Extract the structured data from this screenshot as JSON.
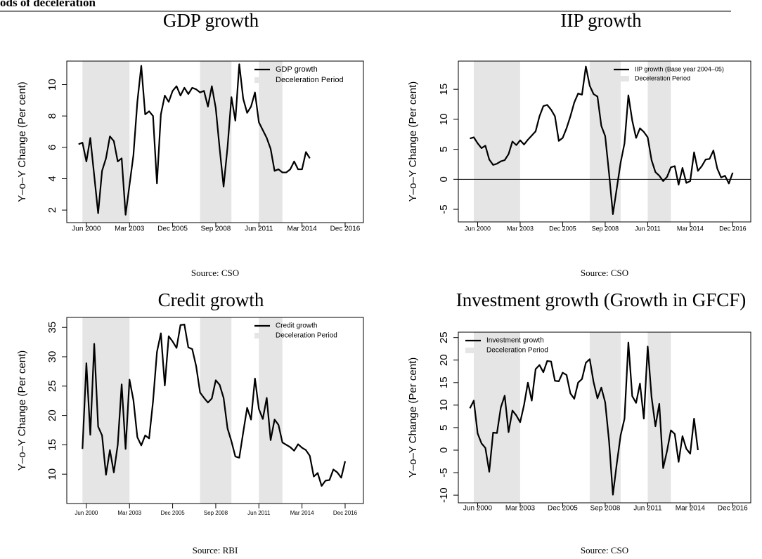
{
  "page_header": "ods of deceleration",
  "chart_data": [
    {
      "type": "line",
      "title": "GDP growth",
      "source": "Source: CSO",
      "ylabel": "Y–o–Y Change (Per cent)",
      "x": [
        "Dec 1999",
        "Mar 2000",
        "Jun 2000",
        "Sep 2000",
        "Dec 2000",
        "Mar 2001",
        "Jun 2001",
        "Sep 2001",
        "Dec 2001",
        "Mar 2002",
        "Jun 2002",
        "Sep 2002",
        "Dec 2002",
        "Mar 2003",
        "Jun 2003",
        "Sep 2003",
        "Dec 2003",
        "Mar 2004",
        "Jun 2004",
        "Sep 2004",
        "Dec 2004",
        "Mar 2005",
        "Jun 2005",
        "Sep 2005",
        "Dec 2005",
        "Mar 2006",
        "Jun 2006",
        "Sep 2006",
        "Dec 2006",
        "Mar 2007",
        "Jun 2007",
        "Sep 2007",
        "Dec 2007",
        "Mar 2008",
        "Jun 2008",
        "Sep 2008",
        "Dec 2008",
        "Mar 2009",
        "Jun 2009",
        "Sep 2009",
        "Dec 2009",
        "Mar 2010",
        "Jun 2010",
        "Sep 2010",
        "Dec 2010",
        "Mar 2011",
        "Jun 2011",
        "Sep 2011",
        "Dec 2011",
        "Mar 2012",
        "Jun 2012",
        "Sep 2012",
        "Dec 2012",
        "Mar 2013",
        "Jun 2013",
        "Sep 2013",
        "Dec 2013",
        "Mar 2014",
        "Jun 2014",
        "Sep 2014"
      ],
      "series": [
        {
          "name": "GDP growth",
          "color": "#000000",
          "values": [
            6.2,
            6.3,
            5.1,
            6.6,
            4.2,
            1.8,
            4.5,
            5.3,
            6.7,
            6.4,
            5.1,
            5.3,
            1.7,
            3.6,
            5.5,
            8.9,
            11.2,
            8.1,
            8.3,
            8.0,
            3.7,
            8.1,
            9.3,
            8.9,
            9.6,
            9.9,
            9.3,
            9.8,
            9.4,
            9.8,
            9.7,
            9.5,
            9.6,
            8.6,
            9.9,
            8.5,
            5.9,
            3.5,
            6.0,
            9.2,
            7.7,
            11.3,
            9.1,
            8.2,
            8.6,
            9.5,
            7.6,
            7.1,
            6.6,
            5.9,
            4.5,
            4.6,
            4.4,
            4.4,
            4.6,
            5.1,
            4.6,
            4.6,
            5.7,
            5.3
          ]
        }
      ],
      "shading": {
        "name": "Deceleration Period",
        "color": "#e5e5e5",
        "periods": [
          [
            "Mar 2000",
            "Mar 2003"
          ],
          [
            "Sep 2007",
            "Sep 2009"
          ],
          [
            "Jun 2011",
            "Dec 2012"
          ]
        ]
      },
      "xlim": [
        "Mar 1999",
        "Feb 2018"
      ],
      "xticks": [
        "Jun 2000",
        "Mar 2003",
        "Dec 2005",
        "Sep 2008",
        "Jun 2011",
        "Mar 2014",
        "Dec 2016"
      ],
      "ylim": [
        1.2,
        11.5
      ],
      "yticks": [
        2,
        4,
        6,
        8,
        10
      ],
      "legend": "top-right"
    },
    {
      "type": "line",
      "title": "IIP growth",
      "source": "Source: CSO",
      "ylabel": "Y–o–Y Change (Per cent)",
      "x": [
        "Dec 1999",
        "Mar 2000",
        "Jun 2000",
        "Sep 2000",
        "Dec 2000",
        "Mar 2001",
        "Jun 2001",
        "Sep 2001",
        "Dec 2001",
        "Mar 2002",
        "Jun 2002",
        "Sep 2002",
        "Dec 2002",
        "Mar 2003",
        "Jun 2003",
        "Sep 2003",
        "Dec 2003",
        "Mar 2004",
        "Jun 2004",
        "Sep 2004",
        "Dec 2004",
        "Mar 2005",
        "Jun 2005",
        "Sep 2005",
        "Dec 2005",
        "Mar 2006",
        "Jun 2006",
        "Sep 2006",
        "Dec 2006",
        "Mar 2007",
        "Jun 2007",
        "Sep 2007",
        "Dec 2007",
        "Mar 2008",
        "Jun 2008",
        "Sep 2008",
        "Dec 2008",
        "Mar 2009",
        "Jun 2009",
        "Sep 2009",
        "Dec 2009",
        "Mar 2010",
        "Jun 2010",
        "Sep 2010",
        "Dec 2010",
        "Mar 2011",
        "Jun 2011",
        "Sep 2011",
        "Dec 2011",
        "Mar 2012",
        "Jun 2012",
        "Sep 2012",
        "Dec 2012",
        "Mar 2013",
        "Jun 2013",
        "Sep 2013",
        "Dec 2013",
        "Mar 2014",
        "Jun 2014",
        "Sep 2014",
        "Dec 2014",
        "Mar 2015",
        "Jun 2015",
        "Sep 2015",
        "Dec 2015",
        "Mar 2016",
        "Jun 2016",
        "Sep 2016",
        "Dec 2016"
      ],
      "series": [
        {
          "name": "IIP growth (Base year 2004–05)",
          "color": "#000000",
          "values": [
            6.8,
            7.0,
            6.0,
            5.2,
            5.6,
            3.3,
            2.4,
            2.6,
            3.0,
            3.2,
            4.2,
            6.3,
            5.7,
            6.5,
            5.8,
            6.6,
            7.3,
            8.0,
            10.5,
            12.2,
            12.4,
            11.6,
            10.5,
            6.4,
            6.9,
            8.5,
            10.5,
            12.8,
            14.3,
            14.1,
            18.8,
            15.6,
            14.2,
            13.8,
            8.9,
            7.2,
            1.0,
            -5.8,
            -1.5,
            2.8,
            6.0,
            14.0,
            9.8,
            6.9,
            8.5,
            7.9,
            7.0,
            3.2,
            1.2,
            0.6,
            -0.3,
            0.4,
            2.0,
            2.2,
            -0.9,
            1.9,
            -0.6,
            -0.3,
            4.5,
            1.4,
            2.2,
            3.3,
            3.4,
            4.8,
            1.8,
            0.3,
            0.6,
            -0.7,
            1.1
          ]
        }
      ],
      "shading": {
        "name": "Deceleration Period",
        "color": "#e5e5e5",
        "periods": [
          [
            "Mar 2000",
            "Mar 2003"
          ],
          [
            "Sep 2007",
            "Sep 2009"
          ],
          [
            "Jun 2011",
            "Dec 2012"
          ]
        ]
      },
      "reference_line": 0,
      "xlim": [
        "Mar 1999",
        "Feb 2018"
      ],
      "xticks": [
        "Jun 2000",
        "Mar 2003",
        "Dec 2005",
        "Sep 2008",
        "Jun 2011",
        "Mar 2014",
        "Dec 2016"
      ],
      "ylim": [
        -7.1,
        19.7
      ],
      "yticks": [
        -5,
        0,
        5,
        10,
        15
      ],
      "legend": "top-right"
    },
    {
      "type": "line",
      "title": "Credit growth",
      "source": "Source: RBI",
      "ylabel": "Y–o–Y Change (Per cent)",
      "x": [
        "Mar 2000",
        "Jun 2000",
        "Sep 2000",
        "Dec 2000",
        "Mar 2001",
        "Jun 2001",
        "Sep 2001",
        "Dec 2001",
        "Mar 2002",
        "Jun 2002",
        "Sep 2002",
        "Dec 2002",
        "Mar 2003",
        "Jun 2003",
        "Sep 2003",
        "Dec 2003",
        "Mar 2004",
        "Jun 2004",
        "Sep 2004",
        "Dec 2004",
        "Mar 2005",
        "Jun 2005",
        "Sep 2005",
        "Dec 2005",
        "Mar 2006",
        "Jun 2006",
        "Sep 2006",
        "Dec 2006",
        "Mar 2007",
        "Jun 2007",
        "Sep 2007",
        "Dec 2007",
        "Mar 2008",
        "Jun 2008",
        "Sep 2008",
        "Dec 2008",
        "Mar 2009",
        "Jun 2009",
        "Sep 2009",
        "Dec 2009",
        "Mar 2010",
        "Jun 2010",
        "Sep 2010",
        "Dec 2010",
        "Mar 2011",
        "Jun 2011",
        "Sep 2011",
        "Dec 2011",
        "Mar 2012",
        "Jun 2012",
        "Sep 2012",
        "Dec 2012",
        "Mar 2013",
        "Jun 2013",
        "Sep 2013",
        "Dec 2013",
        "Mar 2014",
        "Jun 2014",
        "Sep 2014",
        "Dec 2014",
        "Mar 2015",
        "Jun 2015",
        "Sep 2015",
        "Dec 2015",
        "Mar 2016",
        "Jun 2016",
        "Sep 2016",
        "Dec 2016"
      ],
      "series": [
        {
          "name": "Credit growth",
          "color": "#000000",
          "values": [
            14.3,
            28.9,
            16.7,
            32.2,
            18.1,
            16.6,
            9.9,
            14.1,
            10.3,
            15.0,
            25.3,
            14.3,
            26.1,
            22.6,
            16.3,
            14.9,
            16.6,
            16.1,
            22.4,
            30.8,
            34.0,
            25.1,
            33.5,
            32.6,
            31.5,
            35.4,
            35.5,
            31.6,
            31.3,
            28.4,
            23.9,
            23.0,
            22.2,
            22.9,
            26.0,
            25.2,
            23.0,
            17.8,
            15.6,
            13.0,
            12.8,
            17.1,
            21.3,
            19.3,
            26.3,
            21.1,
            19.4,
            23.0,
            15.8,
            19.3,
            18.4,
            15.4,
            15.0,
            14.6,
            14.0,
            15.1,
            14.5,
            14.1,
            13.1,
            9.6,
            10.2,
            8.0,
            8.9,
            9.0,
            10.8,
            10.3,
            9.4,
            12.2
          ]
        }
      ],
      "shading": {
        "name": "Deceleration Period",
        "color": "#e5e5e5",
        "periods": [
          [
            "Mar 2000",
            "Mar 2003"
          ],
          [
            "Sep 2007",
            "Sep 2009"
          ],
          [
            "Jun 2011",
            "Dec 2012"
          ]
        ]
      },
      "xlim": [
        "Mar 1999",
        "Feb 2018"
      ],
      "xticks": [
        "Jun 2000",
        "Mar 2003",
        "Dec 2005",
        "Sep 2008",
        "Jun 2011",
        "Mar 2014",
        "Dec 2016"
      ],
      "ylim": [
        5,
        36.7
      ],
      "yticks": [
        10,
        15,
        20,
        25,
        30,
        35
      ],
      "legend": "top-right"
    },
    {
      "type": "line",
      "title": "Investment growth (Growth in GFCF)",
      "source": "Source: CSO",
      "ylabel": "Y–o–Y Change (Per cent)",
      "x": [
        "Dec 1999",
        "Mar 2000",
        "Jun 2000",
        "Sep 2000",
        "Dec 2000",
        "Mar 2001",
        "Jun 2001",
        "Sep 2001",
        "Dec 2001",
        "Mar 2002",
        "Jun 2002",
        "Sep 2002",
        "Dec 2002",
        "Mar 2003",
        "Jun 2003",
        "Sep 2003",
        "Dec 2003",
        "Mar 2004",
        "Jun 2004",
        "Sep 2004",
        "Dec 2004",
        "Mar 2005",
        "Jun 2005",
        "Sep 2005",
        "Dec 2005",
        "Mar 2006",
        "Jun 2006",
        "Sep 2006",
        "Dec 2006",
        "Mar 2007",
        "Jun 2007",
        "Sep 2007",
        "Dec 2007",
        "Mar 2008",
        "Jun 2008",
        "Sep 2008",
        "Dec 2008",
        "Mar 2009",
        "Jun 2009",
        "Sep 2009",
        "Dec 2009",
        "Mar 2010",
        "Jun 2010",
        "Sep 2010",
        "Dec 2010",
        "Mar 2011",
        "Jun 2011",
        "Sep 2011",
        "Dec 2011",
        "Mar 2012",
        "Jun 2012",
        "Sep 2012",
        "Dec 2012",
        "Mar 2013",
        "Jun 2013",
        "Sep 2013",
        "Dec 2013",
        "Mar 2014",
        "Jun 2014",
        "Sep 2014"
      ],
      "series": [
        {
          "name": "Investment growth",
          "color": "#000000",
          "values": [
            9.3,
            11.0,
            3.7,
            1.5,
            0.5,
            -4.8,
            3.9,
            3.8,
            9.5,
            12.1,
            4.0,
            8.8,
            7.7,
            6.2,
            10.0,
            15.0,
            11.0,
            18.0,
            18.9,
            17.3,
            19.8,
            19.7,
            15.4,
            15.3,
            17.2,
            16.7,
            12.6,
            11.4,
            15.0,
            15.8,
            19.4,
            20.2,
            15.1,
            11.5,
            13.9,
            10.6,
            2.0,
            -9.9,
            -3.0,
            3.3,
            7.0,
            23.9,
            12.0,
            10.5,
            14.8,
            7.0,
            23.0,
            11.8,
            5.3,
            10.3,
            -4.0,
            -0.2,
            4.4,
            3.6,
            -2.6,
            3.1,
            0.3,
            -0.8,
            7.0,
            0.0
          ]
        }
      ],
      "shading": {
        "name": "Deceleration Period",
        "color": "#e5e5e5",
        "periods": [
          [
            "Mar 2000",
            "Mar 2003"
          ],
          [
            "Sep 2007",
            "Sep 2009"
          ],
          [
            "Jun 2011",
            "Dec 2012"
          ]
        ]
      },
      "xlim": [
        "Mar 1999",
        "Feb 2018"
      ],
      "xticks": [
        "Jun 2000",
        "Mar 2003",
        "Dec 2005",
        "Sep 2008",
        "Jun 2011",
        "Mar 2014",
        "Dec 2016"
      ],
      "ylim": [
        -11.7,
        26.2
      ],
      "yticks": [
        -10,
        -5,
        0,
        5,
        10,
        15,
        20,
        25
      ],
      "legend": "top-left"
    }
  ]
}
